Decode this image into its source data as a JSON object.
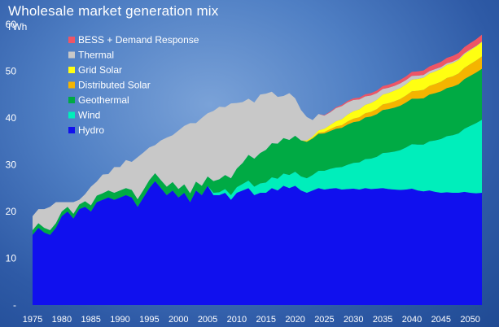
{
  "chart_data": {
    "type": "area",
    "stacked": true,
    "title": "Wholesale market generation mix",
    "ylabel": "TWh",
    "xlabel": "",
    "xlim": [
      1975,
      2052
    ],
    "ylim": [
      0,
      60
    ],
    "y_ticks": [
      "-",
      "10",
      "20",
      "30",
      "40",
      "50",
      "60"
    ],
    "x_ticks": [
      1975,
      1980,
      1985,
      1990,
      1995,
      2000,
      2005,
      2010,
      2015,
      2020,
      2025,
      2030,
      2035,
      2040,
      2045,
      2050
    ],
    "grid": false,
    "legend_position": "top-left",
    "x": [
      1975,
      1976,
      1977,
      1978,
      1979,
      1980,
      1981,
      1982,
      1983,
      1984,
      1985,
      1986,
      1987,
      1988,
      1989,
      1990,
      1991,
      1992,
      1993,
      1994,
      1995,
      1996,
      1997,
      1998,
      1999,
      2000,
      2001,
      2002,
      2003,
      2004,
      2005,
      2006,
      2007,
      2008,
      2009,
      2010,
      2011,
      2012,
      2013,
      2014,
      2015,
      2016,
      2017,
      2018,
      2019,
      2020,
      2021,
      2022,
      2023,
      2024,
      2025,
      2026,
      2027,
      2028,
      2029,
      2030,
      2031,
      2032,
      2033,
      2034,
      2035,
      2036,
      2037,
      2038,
      2039,
      2040,
      2041,
      2042,
      2043,
      2044,
      2045,
      2046,
      2047,
      2048,
      2049,
      2050,
      2051,
      2052
    ],
    "series": [
      {
        "name": "Hydro",
        "color": "#1010ee",
        "values": [
          15.0,
          16.5,
          15.5,
          15.0,
          16.5,
          19.0,
          20.0,
          18.5,
          20.5,
          21.0,
          20.0,
          22.0,
          22.5,
          23.0,
          22.5,
          23.0,
          23.5,
          23.0,
          21.0,
          23.0,
          25.0,
          26.5,
          25.0,
          23.5,
          24.5,
          23.0,
          24.0,
          22.0,
          24.5,
          23.5,
          25.5,
          23.5,
          23.5,
          24.0,
          22.5,
          24.0,
          24.5,
          25.0,
          23.5,
          24.0,
          24.0,
          25.0,
          24.5,
          25.5,
          25.0,
          25.5,
          24.5,
          24.0,
          24.5,
          25.0,
          24.7,
          24.9,
          25.0,
          24.7,
          24.8,
          24.9,
          24.7,
          25.0,
          24.8,
          24.9,
          25.0,
          24.8,
          24.7,
          24.6,
          24.7,
          24.9,
          24.5,
          24.3,
          24.5,
          24.2,
          24.0,
          24.1,
          24.0,
          24.0,
          24.2,
          24.0,
          23.9,
          24.0
        ]
      },
      {
        "name": "Wind",
        "color": "#00eebb",
        "values": [
          0,
          0,
          0,
          0,
          0,
          0,
          0,
          0,
          0,
          0,
          0,
          0,
          0,
          0,
          0,
          0,
          0,
          0,
          0,
          0,
          0,
          0,
          0,
          0,
          0,
          0,
          0,
          0,
          0,
          0,
          0,
          0.5,
          0.6,
          0.8,
          1.0,
          1.2,
          1.4,
          1.6,
          1.8,
          2.0,
          2.2,
          2.3,
          2.5,
          2.6,
          2.8,
          3.0,
          3.0,
          3.1,
          3.3,
          3.7,
          4.0,
          4.2,
          4.4,
          4.8,
          5.2,
          5.5,
          5.8,
          6.2,
          6.5,
          6.8,
          7.5,
          7.8,
          8.1,
          8.5,
          9.0,
          9.5,
          9.8,
          10.0,
          10.5,
          11.0,
          11.5,
          12.0,
          12.3,
          12.7,
          13.5,
          14.3,
          15.0,
          15.6
        ]
      },
      {
        "name": "Geothermal",
        "color": "#00aa44",
        "values": [
          1.0,
          1.0,
          1.0,
          1.0,
          1.0,
          1.0,
          1.0,
          1.0,
          1.0,
          1.2,
          1.3,
          1.4,
          1.4,
          1.5,
          1.5,
          1.5,
          1.5,
          1.6,
          1.6,
          1.6,
          1.7,
          1.7,
          1.7,
          1.8,
          1.8,
          1.8,
          1.8,
          1.9,
          1.9,
          2.0,
          2.0,
          2.5,
          2.8,
          3.0,
          3.6,
          4.0,
          4.5,
          5.5,
          6.0,
          6.5,
          7.0,
          7.3,
          7.5,
          7.6,
          7.5,
          7.7,
          7.7,
          7.8,
          7.8,
          7.9,
          8.0,
          8.1,
          8.3,
          8.4,
          8.6,
          8.7,
          8.8,
          8.9,
          9.0,
          9.1,
          9.2,
          9.3,
          9.4,
          9.5,
          9.6,
          9.7,
          9.8,
          9.9,
          10.0,
          10.1,
          10.2,
          10.3,
          10.4,
          10.5,
          10.6,
          10.7,
          10.8,
          10.9
        ]
      },
      {
        "name": "Distributed Solar",
        "color": "#f5b400",
        "values": [
          0,
          0,
          0,
          0,
          0,
          0,
          0,
          0,
          0,
          0,
          0,
          0,
          0,
          0,
          0,
          0,
          0,
          0,
          0,
          0,
          0,
          0,
          0,
          0,
          0,
          0,
          0,
          0,
          0,
          0,
          0,
          0,
          0,
          0,
          0,
          0,
          0,
          0,
          0,
          0,
          0,
          0,
          0,
          0,
          0,
          0,
          0,
          0.1,
          0.15,
          0.25,
          0.3,
          0.4,
          0.5,
          0.55,
          0.65,
          0.75,
          0.85,
          0.9,
          1.0,
          1.1,
          1.2,
          1.25,
          1.35,
          1.45,
          1.5,
          1.6,
          1.7,
          1.8,
          1.85,
          1.95,
          2.05,
          2.15,
          2.2,
          2.3,
          2.4,
          2.5,
          2.55,
          2.65
        ]
      },
      {
        "name": "Grid Solar",
        "color": "#ffff11",
        "values": [
          0,
          0,
          0,
          0,
          0,
          0,
          0,
          0,
          0,
          0,
          0,
          0,
          0,
          0,
          0,
          0,
          0,
          0,
          0,
          0,
          0,
          0,
          0,
          0,
          0,
          0,
          0,
          0,
          0,
          0,
          0,
          0,
          0,
          0,
          0,
          0,
          0,
          0,
          0,
          0,
          0,
          0,
          0,
          0,
          0,
          0,
          0,
          0.2,
          0.3,
          0.5,
          0.7,
          0.9,
          1.1,
          1.3,
          1.5,
          1.6,
          1.7,
          1.8,
          1.9,
          2.0,
          2.1,
          2.2,
          2.3,
          2.35,
          2.4,
          2.5,
          2.55,
          2.6,
          2.65,
          2.7,
          2.75,
          2.8,
          2.85,
          2.9,
          2.95,
          3.0,
          3.05,
          3.1
        ]
      },
      {
        "name": "Thermal",
        "color": "#c8c8c8",
        "values": [
          3.0,
          3.0,
          4.0,
          5.0,
          4.5,
          2.0,
          1.0,
          2.5,
          1.0,
          1.5,
          4.0,
          3.0,
          4.0,
          3.5,
          5.5,
          5.0,
          6.0,
          6.0,
          9.0,
          8.0,
          7.0,
          6.0,
          8.5,
          10.5,
          10.0,
          12.5,
          12.5,
          15.0,
          12.5,
          14.5,
          13.5,
          15.0,
          15.5,
          14.5,
          16.0,
          14.0,
          13.0,
          12.0,
          12.0,
          12.5,
          12.0,
          11.0,
          10.0,
          9.0,
          10.0,
          8.0,
          6.5,
          5.0,
          3.5,
          3.5,
          2.8,
          2.7,
          2.8,
          2.8,
          2.6,
          2.4,
          2.1,
          1.8,
          1.6,
          1.4,
          1.2,
          1.1,
          1.0,
          1.0,
          0.9,
          0.8,
          0.7,
          0.6,
          0.5,
          0.5,
          0.4,
          0.35,
          0.3,
          0.25,
          0.2,
          0.15,
          0.1,
          0.1
        ]
      },
      {
        "name": "BESS + Demand Response",
        "color": "#ee5566",
        "values": [
          0,
          0,
          0,
          0,
          0,
          0,
          0,
          0,
          0,
          0,
          0,
          0,
          0,
          0,
          0,
          0,
          0,
          0,
          0,
          0,
          0,
          0,
          0,
          0,
          0,
          0,
          0,
          0,
          0,
          0,
          0,
          0,
          0,
          0,
          0,
          0,
          0,
          0,
          0,
          0,
          0,
          0,
          0,
          0,
          0,
          0,
          0,
          0,
          0,
          0,
          0.1,
          0.15,
          0.2,
          0.25,
          0.3,
          0.35,
          0.4,
          0.45,
          0.5,
          0.55,
          0.6,
          0.65,
          0.7,
          0.75,
          0.8,
          0.85,
          0.9,
          0.95,
          1.0,
          1.05,
          1.1,
          1.15,
          1.2,
          1.25,
          1.3,
          1.35,
          1.4,
          1.45
        ]
      }
    ],
    "legend_order": [
      "BESS + Demand Response",
      "Thermal",
      "Grid Solar",
      "Distributed Solar",
      "Geothermal",
      "Wind",
      "Hydro"
    ]
  }
}
